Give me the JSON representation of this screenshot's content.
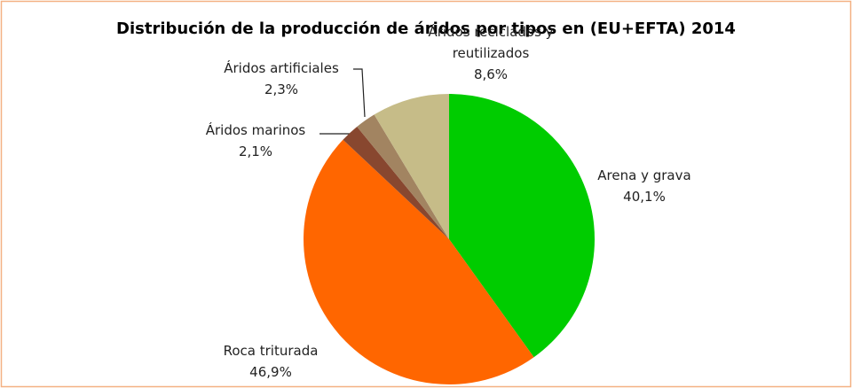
{
  "chart_data": {
    "type": "pie",
    "title": "Distribución de la producción de áridos por tipos en (EU+EFTA) 2014",
    "categories": [
      "Arena y grava",
      "Roca triturada",
      "Áridos marinos",
      "Áridos artificiales",
      "Áridos reciclados y reutilizados"
    ],
    "values": [
      40.1,
      46.9,
      2.1,
      2.3,
      8.6
    ],
    "value_labels": [
      "40,1%",
      "46,9%",
      "2,1%",
      "2,3%",
      "8,6%"
    ],
    "colors": [
      "#00cc00",
      "#ff6600",
      "#88472f",
      "#a28461",
      "#c6bc88"
    ]
  }
}
